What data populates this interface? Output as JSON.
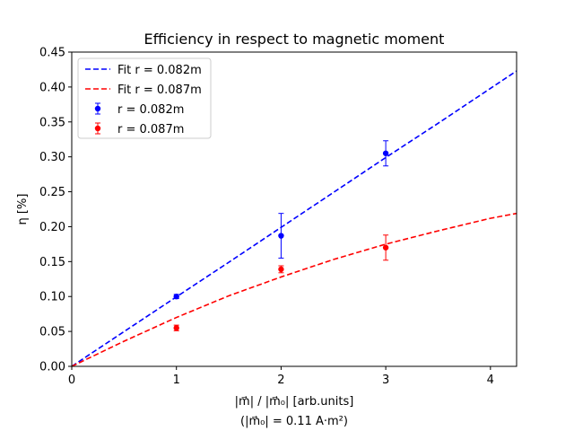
{
  "chart_data": {
    "type": "scatter",
    "title": "Efficiency in respect to magnetic moment",
    "xlabel": "|m⃗| / |m⃗₀| [arb.units]",
    "xlabel_note": "(|m⃗₀| = 0.11 A·m²)",
    "ylabel": "η [%]",
    "xlim": [
      0,
      4.25
    ],
    "ylim": [
      0,
      0.45
    ],
    "x_ticks": [
      "0",
      "1",
      "2",
      "3",
      "4"
    ],
    "y_ticks": [
      "0.00",
      "0.05",
      "0.10",
      "0.15",
      "0.20",
      "0.25",
      "0.30",
      "0.35",
      "0.40",
      "0.45"
    ],
    "grid": false,
    "legend_position": "top-left",
    "series": [
      {
        "name": "r = 0.082m",
        "kind": "errorbar",
        "color": "#0000ff",
        "x": [
          1,
          2,
          3
        ],
        "y": [
          0.1,
          0.187,
          0.305
        ],
        "yerr": [
          0.003,
          0.032,
          0.018
        ]
      },
      {
        "name": "r = 0.087m",
        "kind": "errorbar",
        "color": "#ff0000",
        "x": [
          1,
          2,
          3
        ],
        "y": [
          0.055,
          0.139,
          0.17
        ],
        "yerr": [
          0.004,
          0.005,
          0.018
        ]
      }
    ],
    "fits": [
      {
        "name": "Fit r = 0.082m",
        "color": "#0000ff",
        "style": "dashed",
        "x": [
          0,
          0.5,
          1,
          1.5,
          2,
          2.5,
          3,
          3.5,
          4,
          4.25
        ],
        "y": [
          0,
          0.0498,
          0.0995,
          0.149,
          0.199,
          0.249,
          0.299,
          0.348,
          0.398,
          0.423
        ]
      },
      {
        "name": "Fit r = 0.087m",
        "color": "#ff0000",
        "style": "dashed",
        "x": [
          0,
          0.5,
          1,
          1.5,
          2,
          2.5,
          3,
          3.5,
          4,
          4.25
        ],
        "y": [
          0,
          0.036,
          0.07,
          0.101,
          0.128,
          0.153,
          0.175,
          0.194,
          0.212,
          0.219
        ]
      }
    ]
  }
}
